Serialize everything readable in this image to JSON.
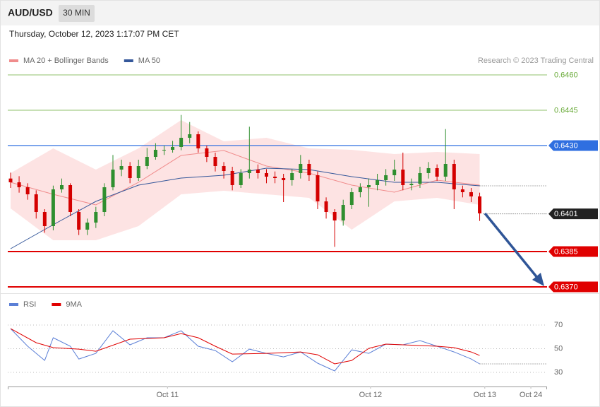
{
  "header": {
    "symbol": "AUD/USD",
    "timeframe": "30 MIN",
    "datetime": "Thursday, October 12, 2023 1:17:07 PM CET",
    "credit": "Research © 2023 Trading Central"
  },
  "chart_data": [
    {
      "type": "candlestick",
      "x": [
        0,
        1,
        2,
        3,
        4,
        5,
        6,
        7,
        8,
        9,
        10,
        11,
        12,
        13,
        14,
        15,
        16,
        17,
        18,
        19,
        20,
        21,
        22,
        23,
        24,
        25,
        26,
        27,
        28,
        29,
        30,
        31,
        32,
        33,
        34,
        35,
        36,
        37,
        38,
        39,
        40,
        41,
        42,
        43,
        44,
        45,
        46,
        47,
        48,
        49,
        50,
        51,
        52,
        53,
        54,
        55
      ],
      "open": [
        0.6416,
        0.64144,
        0.64123,
        0.64093,
        0.64018,
        0.63958,
        0.64114,
        0.64132,
        0.64018,
        0.63943,
        0.63973,
        0.64018,
        0.64123,
        0.64198,
        0.64213,
        0.64162,
        0.64213,
        0.64252,
        0.64282,
        0.64282,
        0.64294,
        0.64333,
        0.64348,
        0.64288,
        0.64252,
        0.64213,
        0.64192,
        0.64132,
        0.64183,
        0.64198,
        0.64183,
        0.64168,
        0.64162,
        0.64153,
        0.64183,
        0.64222,
        0.64174,
        0.64063,
        0.64018,
        0.63982,
        0.64048,
        0.64102,
        0.64123,
        0.64132,
        0.64153,
        0.64174,
        0.64198,
        0.64132,
        0.64138,
        0.64183,
        0.64204,
        0.64168,
        0.64222,
        0.64114,
        0.64102,
        0.64084
      ],
      "high": [
        0.64185,
        0.6417,
        0.6414,
        0.6411,
        0.6403,
        0.6413,
        0.6416,
        0.6414,
        0.6403,
        0.6399,
        0.6404,
        0.6414,
        0.6426,
        0.6424,
        0.6423,
        0.6424,
        0.6429,
        0.6431,
        0.643,
        0.6432,
        0.6443,
        0.644,
        0.6436,
        0.643,
        0.6427,
        0.6423,
        0.6421,
        0.642,
        0.6438,
        0.6422,
        0.642,
        0.6419,
        0.6418,
        0.642,
        0.6426,
        0.6424,
        0.6419,
        0.6408,
        0.6403,
        0.6407,
        0.6412,
        0.6414,
        0.6416,
        0.6418,
        0.642,
        0.6424,
        0.6427,
        0.6416,
        0.6421,
        0.6423,
        0.6422,
        0.6437,
        0.6424,
        0.6413,
        0.6412,
        0.641
      ],
      "low": [
        0.6412,
        0.641,
        0.6407,
        0.6399,
        0.6393,
        0.6394,
        0.641,
        0.64,
        0.6392,
        0.6392,
        0.6395,
        0.64,
        0.6411,
        0.6417,
        0.6414,
        0.6415,
        0.642,
        0.6424,
        0.6426,
        0.6427,
        0.6428,
        0.6431,
        0.6427,
        0.6423,
        0.6419,
        0.6416,
        0.6411,
        0.6412,
        0.6416,
        0.6416,
        0.6414,
        0.6414,
        0.6406,
        0.6413,
        0.6416,
        0.6415,
        0.6403,
        0.6399,
        0.6387,
        0.6396,
        0.6403,
        0.6408,
        0.6404,
        0.6411,
        0.6413,
        0.6415,
        0.6411,
        0.6411,
        0.6412,
        0.6416,
        0.6415,
        0.6415,
        0.6403,
        0.6408,
        0.6406,
        0.6398
      ],
      "close": [
        0.64144,
        0.64123,
        0.64093,
        0.64018,
        0.63958,
        0.64114,
        0.64132,
        0.64018,
        0.63943,
        0.63973,
        0.64018,
        0.64123,
        0.64198,
        0.64213,
        0.64162,
        0.64213,
        0.64252,
        0.64282,
        0.64282,
        0.64294,
        0.64333,
        0.64348,
        0.64288,
        0.64252,
        0.64213,
        0.64192,
        0.64132,
        0.64183,
        0.64198,
        0.64183,
        0.64168,
        0.64162,
        0.64153,
        0.64183,
        0.64222,
        0.64174,
        0.64063,
        0.64018,
        0.63982,
        0.64048,
        0.64102,
        0.64123,
        0.64132,
        0.64153,
        0.64174,
        0.64198,
        0.64132,
        0.64138,
        0.64183,
        0.64204,
        0.64168,
        0.64222,
        0.64114,
        0.64102,
        0.64084,
        0.64012
      ],
      "up_color": "#2f8f2f",
      "down_color": "#d40000",
      "xlim": [
        -0.33,
        62.9
      ],
      "ylim": [
        0.6368,
        0.6474
      ],
      "overlays": [
        {
          "name": "MA 20 + Bollinger Bands",
          "color": "#f08c8c",
          "band_color": "#fde3e3",
          "x": [
            0,
            5,
            10,
            15,
            20,
            25,
            30,
            35,
            40,
            45,
            50,
            55
          ],
          "values": [
            0.64144,
            0.64093,
            0.64048,
            0.64144,
            0.64258,
            0.64279,
            0.64213,
            0.64183,
            0.64132,
            0.64102,
            0.64153,
            0.64132
          ],
          "upper": [
            0.64183,
            0.64288,
            0.64198,
            0.64288,
            0.64408,
            0.64318,
            0.64333,
            0.64288,
            0.64282,
            0.64264,
            0.64273,
            0.64264
          ],
          "lower": [
            0.64033,
            0.63898,
            0.63898,
            0.63958,
            0.64093,
            0.64108,
            0.64093,
            0.64078,
            0.63943,
            0.64063,
            0.64078,
            0.64048
          ]
        },
        {
          "name": "MA 50",
          "color": "#34579a",
          "x": [
            0,
            5,
            10,
            15,
            20,
            25,
            30,
            35,
            40,
            45,
            50,
            55
          ],
          "values": [
            0.63862,
            0.63964,
            0.64063,
            0.64132,
            0.64162,
            0.64174,
            0.64204,
            0.64198,
            0.64168,
            0.64144,
            0.64144,
            0.64129
          ]
        }
      ],
      "levels": [
        {
          "value": 0.646,
          "label": "0.6460",
          "color": "#6aab3a",
          "box": false,
          "dashed": false
        },
        {
          "value": 0.6445,
          "label": "0.6445",
          "color": "#6aab3a",
          "box": false,
          "dashed": false
        },
        {
          "value": 0.643,
          "label": "0.6430",
          "color": "#2f6fe0",
          "box": true,
          "dashed": false
        },
        {
          "value": 0.6401,
          "label": "0.6401",
          "color": "#222222",
          "box": true,
          "dashed": true
        },
        {
          "value": 0.6385,
          "label": "0.6385",
          "color": "#e00000",
          "box": true,
          "dashed": false
        },
        {
          "value": 0.637,
          "label": "0.6370",
          "color": "#e00000",
          "box": true,
          "dashed": false
        }
      ]
    },
    {
      "type": "line",
      "xlim": [
        -0.33,
        62.9
      ],
      "ylim": [
        20,
        80
      ],
      "yticks": [
        30,
        50,
        70
      ],
      "grid": true,
      "xticks": [
        {
          "value": 18.4,
          "label": "Oct 11"
        },
        {
          "value": 42.2,
          "label": "Oct 12"
        },
        {
          "value": 55.6,
          "label": "Oct 13"
        },
        {
          "value": 61.0,
          "label": "Oct 24"
        }
      ],
      "series": [
        {
          "name": "RSI",
          "color": "#5b7fd6",
          "x": [
            0,
            2,
            4,
            5,
            7,
            8,
            10,
            12,
            14,
            16,
            18,
            20,
            22,
            24,
            26,
            28,
            30,
            32,
            34,
            36,
            38,
            40,
            42,
            44,
            46,
            48,
            50,
            52,
            54,
            55
          ],
          "values": [
            67.0,
            52.1,
            40.1,
            59.3,
            52.1,
            41.3,
            46.1,
            65.2,
            53.3,
            59.3,
            59.3,
            65.2,
            52.1,
            48.5,
            39.0,
            49.7,
            46.1,
            43.1,
            47.3,
            37.8,
            31.2,
            49.1,
            46.1,
            53.9,
            53.3,
            56.9,
            52.1,
            47.3,
            41.3,
            37.2
          ]
        },
        {
          "name": "9MA",
          "color": "#e00000",
          "x": [
            0,
            3,
            5,
            8,
            10,
            14,
            18,
            20,
            22,
            24,
            26,
            30,
            34,
            36,
            38,
            40,
            42,
            44,
            46,
            50,
            52,
            54,
            55
          ],
          "values": [
            67.0,
            55.1,
            50.9,
            49.7,
            47.9,
            58.1,
            59.3,
            62.8,
            59.3,
            52.1,
            45.5,
            46.1,
            47.3,
            44.9,
            37.2,
            40.1,
            50.3,
            53.9,
            53.3,
            52.1,
            50.9,
            47.3,
            44.3
          ]
        }
      ]
    }
  ]
}
